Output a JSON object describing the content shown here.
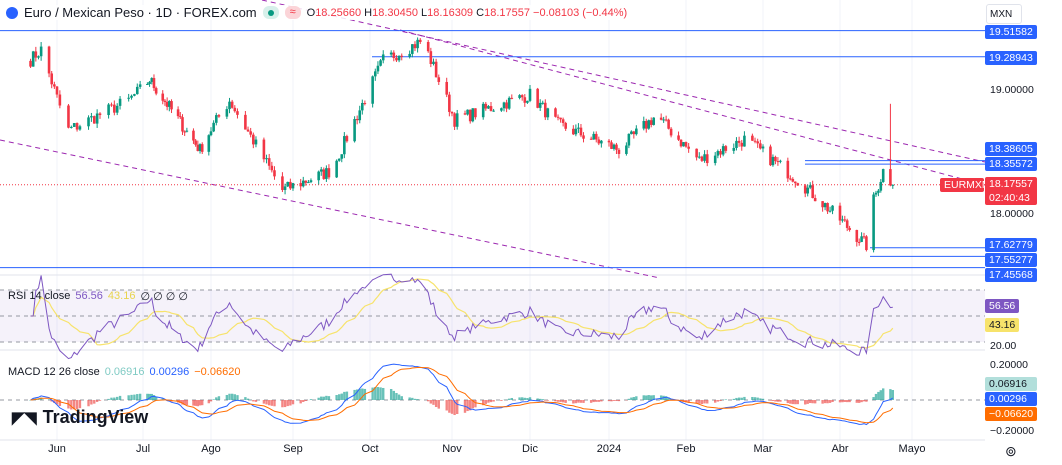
{
  "header": {
    "title": "Euro / Mexican Peso · 1D · FOREX.com",
    "open_label": "O",
    "open": "18.25660",
    "high_label": "H",
    "high": "18.30450",
    "low_label": "L",
    "low": "18.16309",
    "close_label": "C",
    "close": "18.17557",
    "change": "−0.08103 (−0.44%)"
  },
  "currency_select": "MXN",
  "symbol_tag": "EURMXN",
  "countdown": "02:40:43",
  "price_axis": {
    "ticks": [
      "19.00000",
      "18.00000"
    ],
    "levels": [
      "19.51582",
      "19.28943",
      "18.38605",
      "18.35572",
      "17.62779",
      "17.55277",
      "17.45568"
    ],
    "last": "18.17557"
  },
  "rsi": {
    "label": "RSI 14 close",
    "value": "56.56",
    "ma": "43.16",
    "extras": "∅ ∅ ∅ ∅",
    "ticks": [
      "20.00"
    ]
  },
  "macd": {
    "label": "MACD 12 26 close",
    "hist": "0.06916",
    "macd": "0.00296",
    "signal": "−0.06620",
    "ticks": [
      "0.20000",
      "−0.20000"
    ]
  },
  "time_axis": [
    "Jun",
    "Jul",
    "Ago",
    "Sep",
    "Oct",
    "Nov",
    "Dic",
    "2024",
    "Feb",
    "Mar",
    "Abr",
    "Mayo"
  ],
  "brand": "TradingView",
  "colors": {
    "up": "#089981",
    "down": "#f23645",
    "level": "#2962ff",
    "rsi": "#7e57c2",
    "rsi_ma": "#f7e36b",
    "macd": "#2962ff",
    "signal": "#ff6d00"
  },
  "chart_data": {
    "type": "candlestick",
    "symbol": "EURMXN",
    "interval": "1D",
    "keypoints": [
      [
        "2023-05-20",
        19.22
      ],
      [
        "2023-05-26",
        19.35
      ],
      [
        "2023-06-05",
        18.65
      ],
      [
        "2023-06-26",
        18.91
      ],
      [
        "2023-07-04",
        19.09
      ],
      [
        "2023-07-27",
        18.48
      ],
      [
        "2023-08-08",
        18.91
      ],
      [
        "2023-08-28",
        18.13
      ],
      [
        "2023-09-16",
        18.3
      ],
      [
        "2023-10-06",
        19.26
      ],
      [
        "2023-10-21",
        19.43
      ],
      [
        "2023-11-02",
        18.74
      ],
      [
        "2023-12-01",
        18.96
      ],
      [
        "2023-12-12",
        18.7
      ],
      [
        "2024-01-05",
        18.48
      ],
      [
        "2024-01-20",
        18.78
      ],
      [
        "2024-02-06",
        18.39
      ],
      [
        "2024-02-23",
        18.57
      ],
      [
        "2024-03-15",
        18.22
      ],
      [
        "2024-04-12",
        17.65
      ],
      [
        "2024-04-15",
        18.04
      ],
      [
        "2024-04-19",
        18.3
      ],
      [
        "2024-04-23",
        18.18
      ]
    ]
  }
}
